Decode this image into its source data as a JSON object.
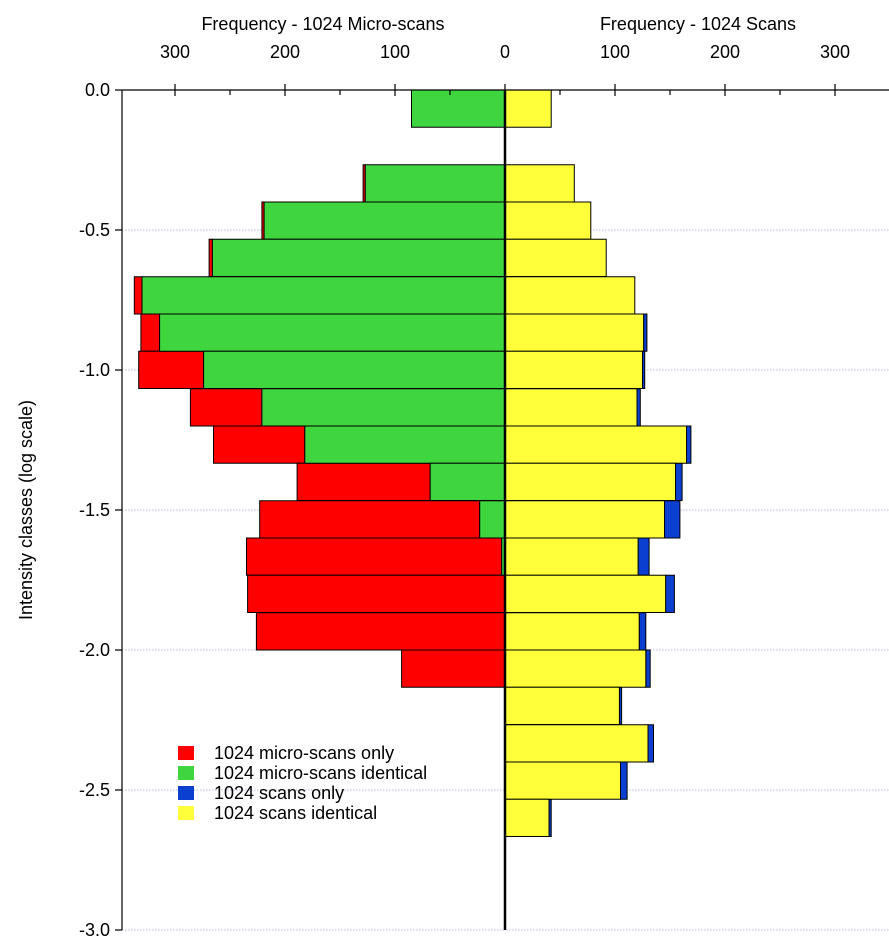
{
  "chart_data": {
    "type": "bar",
    "orientation": "horizontal-back-to-back",
    "title": "",
    "top_left_axis_label": "Frequency - 1024 Micro-scans",
    "top_right_axis_label": "Frequency - 1024 Scans",
    "ylabel": "Intensity classes (log scale)",
    "ylim": [
      -3.0,
      0.0
    ],
    "y_ticks": [
      "0.0",
      "-0.5",
      "-1.0",
      "-1.5",
      "-2.0",
      "-2.5",
      "-3.0"
    ],
    "y_tick_values": [
      0.0,
      -0.5,
      -1.0,
      -1.5,
      -2.0,
      -2.5,
      -3.0
    ],
    "x_ticks_left": [
      "300",
      "200",
      "100"
    ],
    "x_tick_values_left": [
      300,
      200,
      100
    ],
    "x_ticks_right": [
      "100",
      "200",
      "300"
    ],
    "x_tick_values_right": [
      100,
      200,
      300
    ],
    "x_zero_label": "0",
    "xlim_left": [
      0,
      335
    ],
    "xlim_right": [
      0,
      335
    ],
    "bin_width": 0.133,
    "bin_tops": [
      0.0,
      -0.267,
      -0.4,
      -0.533,
      -0.667,
      -0.8,
      -0.933,
      -1.067,
      -1.2,
      -1.333,
      -1.467,
      -1.6,
      -1.733,
      -1.867,
      -2.0,
      -2.133,
      -2.267,
      -2.4,
      -2.533
    ],
    "series": [
      {
        "name": "1024 micro-scans only",
        "side": "left",
        "color": "#ff0000",
        "values": [
          0,
          2,
          2,
          3,
          7,
          17,
          59,
          65,
          83,
          121,
          200,
          232,
          234,
          226,
          94,
          0,
          0,
          0,
          0
        ]
      },
      {
        "name": "1024 micro-scans identical",
        "side": "left",
        "color": "#3fd53f",
        "values": [
          85,
          127,
          219,
          266,
          330,
          314,
          274,
          221,
          182,
          68,
          23,
          3,
          0,
          0,
          0,
          0,
          0,
          0,
          0
        ]
      },
      {
        "name": "1024 scans only",
        "side": "right",
        "color": "#0a3fd0",
        "values": [
          0,
          0,
          0,
          0,
          0,
          3,
          2,
          3,
          4,
          6,
          14,
          10,
          8,
          6,
          4,
          2,
          5,
          6,
          2
        ]
      },
      {
        "name": "1024 scans identical",
        "side": "right",
        "color": "#ffff3a",
        "values": [
          42,
          63,
          78,
          92,
          118,
          126,
          125,
          120,
          165,
          155,
          145,
          121,
          146,
          122,
          128,
          104,
          130,
          105,
          40
        ]
      }
    ],
    "legend": {
      "position": "bottom-left"
    },
    "grid": true
  }
}
